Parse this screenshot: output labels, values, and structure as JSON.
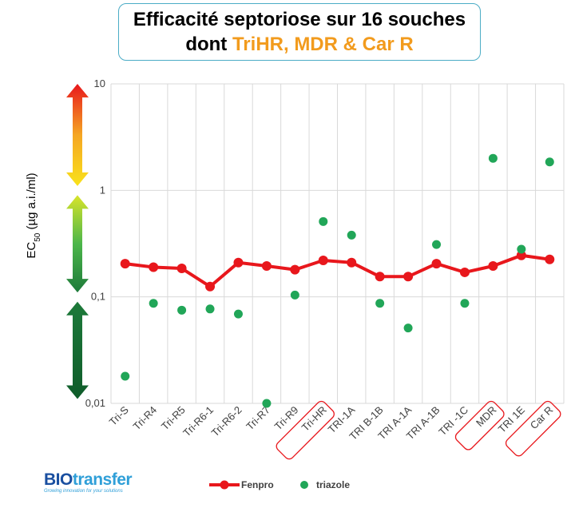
{
  "title": {
    "line1": "Efficacité septoriose sur 16 souches",
    "line2_prefix": "dont ",
    "line2_accent": "TriHR, MDR & Car R"
  },
  "logo": {
    "brand_bio": "BIO",
    "brand_rest": "transfer",
    "tagline": "Growing innovation for your solutions"
  },
  "chart_data": {
    "type": "line",
    "ylabel_main": "EC",
    "ylabel_sub": "50",
    "ylabel_unit": " (µg a.i./ml)",
    "yscale": "log",
    "ylim": [
      0.01,
      10
    ],
    "yticks": [
      {
        "value": 10,
        "label": "10"
      },
      {
        "value": 1,
        "label": "1"
      },
      {
        "value": 0.1,
        "label": "0,1"
      },
      {
        "value": 0.01,
        "label": "0,01"
      }
    ],
    "grid": true,
    "legend_position": "bottom",
    "categories": [
      "Tri-S",
      "Tri-R4",
      "Tri-R5",
      "Tri-R6-1",
      "Tri-R6-2",
      "Tri-R7",
      "Tri-R9",
      "Tri-HR",
      "TRI-1A",
      "TRI B-1B",
      "TRI A-1A",
      "TRI A-1B",
      "TRI -1C",
      "MDR",
      "TRI 1E",
      "Car R"
    ],
    "highlighted_categories": [
      "Tri-HR",
      "MDR",
      "Car R"
    ],
    "series": [
      {
        "name": "Fenpro",
        "style": "line-marker",
        "color": "#e8171c",
        "values": [
          0.205,
          0.19,
          0.185,
          0.125,
          0.21,
          0.195,
          0.18,
          0.22,
          0.21,
          0.155,
          0.155,
          0.205,
          0.17,
          0.195,
          0.245,
          0.225
        ]
      },
      {
        "name": "triazole",
        "style": "scatter",
        "color": "#21a658",
        "values": [
          0.018,
          0.087,
          0.075,
          0.077,
          0.069,
          0.01,
          0.104,
          0.51,
          0.38,
          0.087,
          0.051,
          0.31,
          0.087,
          2.0,
          0.28,
          1.85
        ]
      }
    ],
    "scale_arrows": [
      {
        "from": 10,
        "to": 1.1,
        "colors": [
          "#e8171c",
          "#f5a623",
          "#f9e21b"
        ]
      },
      {
        "from": 0.9,
        "to": 0.11,
        "colors": [
          "#d8e42a",
          "#4cb64a",
          "#1d7a3a"
        ]
      },
      {
        "from": 0.09,
        "to": 0.011,
        "colors": [
          "#1d7a3a",
          "#0f5c2a"
        ]
      }
    ]
  }
}
